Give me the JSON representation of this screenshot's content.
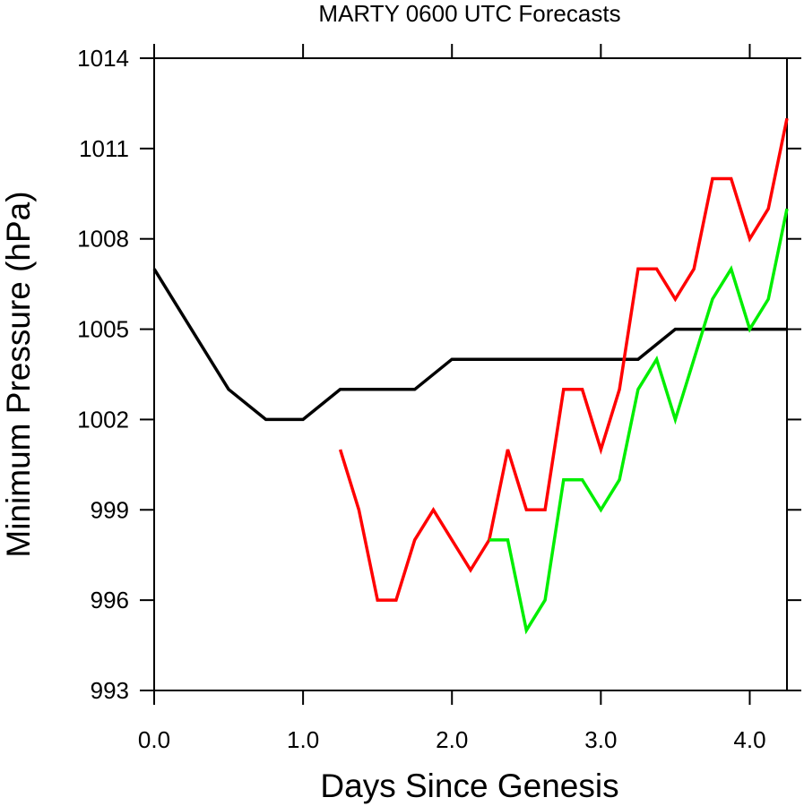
{
  "chart_data": {
    "type": "line",
    "title": "MARTY 0600 UTC Forecasts",
    "xlabel": "Days Since Genesis",
    "ylabel": "Minimum Pressure (hPa)",
    "xlim": [
      0,
      4.25
    ],
    "ylim": [
      993,
      1014
    ],
    "x_ticks": [
      {
        "value": 0,
        "label": "0.0"
      },
      {
        "value": 1,
        "label": "1.0"
      },
      {
        "value": 2,
        "label": "2.0"
      },
      {
        "value": 3,
        "label": "3.0"
      },
      {
        "value": 4,
        "label": "4.0"
      }
    ],
    "y_ticks": [
      {
        "value": 993,
        "label": "993"
      },
      {
        "value": 996,
        "label": "996"
      },
      {
        "value": 999,
        "label": "999"
      },
      {
        "value": 1002,
        "label": "1002"
      },
      {
        "value": 1005,
        "label": "1005"
      },
      {
        "value": 1008,
        "label": "1008"
      },
      {
        "value": 1011,
        "label": "1011"
      },
      {
        "value": 1014,
        "label": "1014"
      }
    ],
    "grid": false,
    "legend": "none",
    "series": [
      {
        "color": "#000000",
        "x": [
          0,
          0.25,
          0.5,
          0.75,
          1.0,
          1.25,
          1.5,
          1.75,
          2.0,
          2.25,
          2.5,
          2.75,
          3.0,
          3.25,
          3.5,
          3.75,
          4.0,
          4.25
        ],
        "values": [
          1007,
          1005,
          1003,
          1002,
          1002,
          1003,
          1003,
          1003,
          1004,
          1004,
          1004,
          1004,
          1004,
          1004,
          1005,
          1005,
          1005,
          1005
        ]
      },
      {
        "color": "#ff0000",
        "x": [
          1.25,
          1.375,
          1.5,
          1.625,
          1.75,
          1.875,
          2.0,
          2.125,
          2.25,
          2.375,
          2.5,
          2.625,
          2.75,
          2.875,
          3.0,
          3.125,
          3.25,
          3.375,
          3.5,
          3.625,
          3.75,
          3.875,
          4.0,
          4.125,
          4.25
        ],
        "values": [
          1001,
          999,
          996,
          996,
          998,
          999,
          998,
          997,
          998,
          1001,
          999,
          999,
          1003,
          1003,
          1001,
          1003,
          1007,
          1007,
          1006,
          1007,
          1010,
          1010,
          1008,
          1009,
          1012
        ]
      },
      {
        "color": "#00ee00",
        "x": [
          2.25,
          2.375,
          2.5,
          2.625,
          2.75,
          2.875,
          3.0,
          3.125,
          3.25,
          3.375,
          3.5,
          3.625,
          3.75,
          3.875,
          4.0,
          4.125,
          4.25
        ],
        "values": [
          998,
          998,
          995,
          996,
          1000,
          1000,
          999,
          1000,
          1003,
          1004,
          1002,
          1004,
          1006,
          1007,
          1005,
          1006,
          1009
        ]
      }
    ]
  }
}
